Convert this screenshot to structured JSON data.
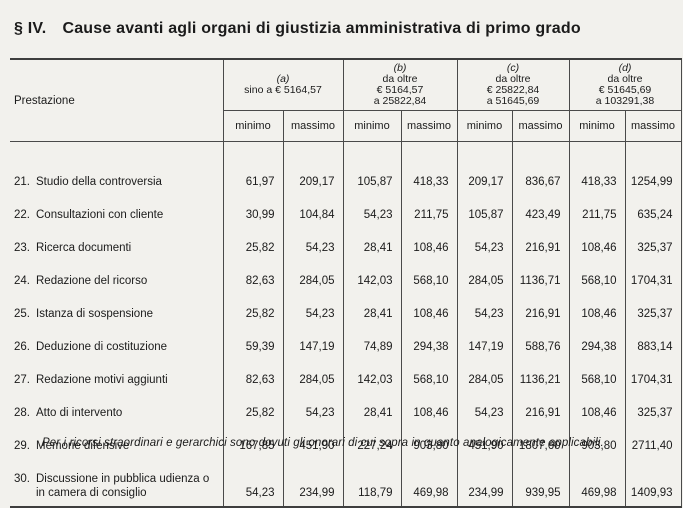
{
  "title": {
    "section": "§ IV.",
    "text": "Cause avanti agli organi di giustizia amministrativa di primo grado"
  },
  "table": {
    "prestazione_label": "Prestazione",
    "groups": [
      {
        "letter": "(a)",
        "lines": [
          "sino a € 5164,57"
        ]
      },
      {
        "letter": "(b)",
        "lines": [
          "da oltre",
          "€ 5164,57",
          "a 25822,84"
        ]
      },
      {
        "letter": "(c)",
        "lines": [
          "da oltre",
          "€ 25822,84",
          "a 51645,69"
        ]
      },
      {
        "letter": "(d)",
        "lines": [
          "da oltre",
          "€ 51645,69",
          "a 103291,38"
        ]
      }
    ],
    "subheaders": [
      "minimo",
      "massimo"
    ],
    "rows": [
      {
        "num": "21.",
        "label": "Studio della controversia",
        "values": [
          "61,97",
          "209,17",
          "105,87",
          "418,33",
          "209,17",
          "836,67",
          "418,33",
          "1254,99"
        ]
      },
      {
        "num": "22.",
        "label": "Consultazioni con cliente",
        "values": [
          "30,99",
          "104,84",
          "54,23",
          "211,75",
          "105,87",
          "423,49",
          "211,75",
          "635,24"
        ]
      },
      {
        "num": "23.",
        "label": "Ricerca documenti",
        "values": [
          "25,82",
          "54,23",
          "28,41",
          "108,46",
          "54,23",
          "216,91",
          "108,46",
          "325,37"
        ]
      },
      {
        "num": "24.",
        "label": "Redazione del ricorso",
        "values": [
          "82,63",
          "284,05",
          "142,03",
          "568,10",
          "284,05",
          "1136,71",
          "568,10",
          "1704,31"
        ]
      },
      {
        "num": "25.",
        "label": "Istanza di sospensione",
        "values": [
          "25,82",
          "54,23",
          "28,41",
          "108,46",
          "54,23",
          "216,91",
          "108,46",
          "325,37"
        ]
      },
      {
        "num": "26.",
        "label": "Deduzione di costituzione",
        "values": [
          "59,39",
          "147,19",
          "74,89",
          "294,38",
          "147,19",
          "588,76",
          "294,38",
          "883,14"
        ]
      },
      {
        "num": "27.",
        "label": "Redazione motivi aggiunti",
        "values": [
          "82,63",
          "284,05",
          "142,03",
          "568,10",
          "284,05",
          "1136,21",
          "568,10",
          "1704,31"
        ]
      },
      {
        "num": "28.",
        "label": "Atto di intervento",
        "values": [
          "25,82",
          "54,23",
          "28,41",
          "108,46",
          "54,23",
          "216,91",
          "108,46",
          "325,37"
        ]
      },
      {
        "num": "29.",
        "label": "Memorie difensive",
        "values": [
          "167,85",
          "451,90",
          "227,24",
          "903,80",
          "451,90",
          "1807,60",
          "903,80",
          "2711,40"
        ]
      },
      {
        "num": "30.",
        "label": "Discussione in pubblica udienza o in camera di consiglio",
        "values": [
          "54,23",
          "234,99",
          "118,79",
          "469,98",
          "234,99",
          "939,95",
          "469,98",
          "1409,93"
        ]
      }
    ]
  },
  "footnote": "Per i ricorsi straordinari e gerarchici sono dovuti gli onorari di cui sopra in quanto analogicamente applicabili."
}
